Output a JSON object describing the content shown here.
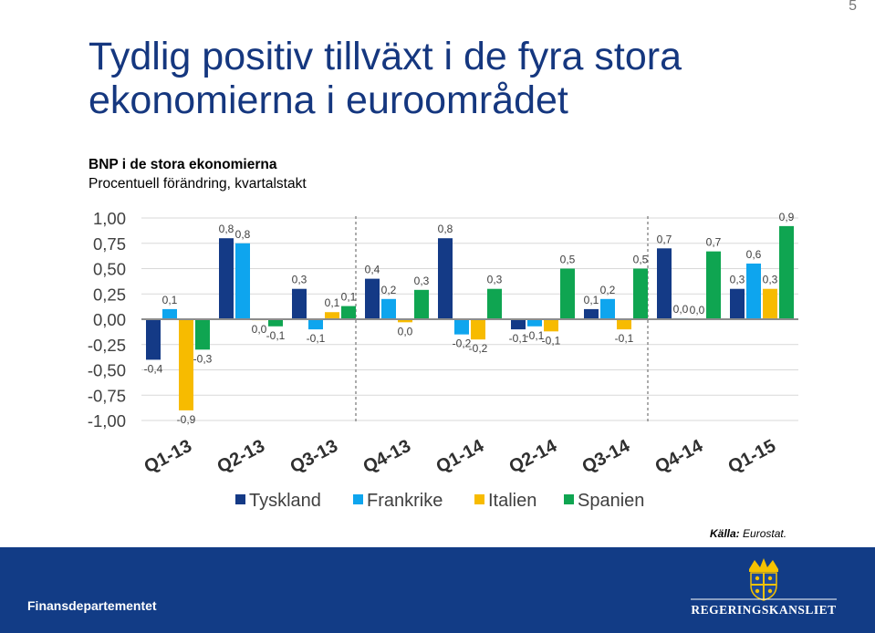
{
  "page": {
    "number": "5",
    "title": "Tydlig positiv tillväxt i de fyra stora ekonomierna i euroområdet",
    "source_label": "Källa:",
    "source_value": "Eurostat.",
    "footer_department": "Finansdepartementet",
    "footer_logo": "REGERINGSKANSLIET"
  },
  "chart_data": {
    "type": "bar",
    "title": "BNP i de stora ekonomierna",
    "subtitle": "Procentuell förändring, kvartalstakt",
    "categories": [
      "Q1-13",
      "Q2-13",
      "Q3-13",
      "Q4-13",
      "Q1-14",
      "Q2-14",
      "Q3-14",
      "Q4-14",
      "Q1-15"
    ],
    "ylim": [
      -1.0,
      1.0
    ],
    "yticks": [
      1.0,
      0.75,
      0.5,
      0.25,
      0.0,
      -0.25,
      -0.5,
      -0.75,
      -1.0
    ],
    "ytick_labels": [
      "1,00",
      "0,75",
      "0,50",
      "0,25",
      "0,00",
      "-0,25",
      "-0,50",
      "-0,75",
      "-1,00"
    ],
    "grid": true,
    "legend_position": "bottom",
    "series": [
      {
        "name": "Tyskland",
        "color": "#143a86",
        "values": [
          -0.4,
          0.8,
          0.3,
          0.4,
          0.8,
          -0.1,
          0.1,
          0.7,
          0.3
        ],
        "labels": [
          "-0,4",
          "0,8",
          "0,3",
          "0,4",
          "0,8",
          "-0,1",
          "0,1",
          "0,7",
          "0,3"
        ]
      },
      {
        "name": "Frankrike",
        "color": "#0ea5ee",
        "values": [
          0.1,
          0.75,
          -0.1,
          0.2,
          -0.15,
          -0.07,
          0.2,
          0.01,
          0.55
        ],
        "labels": [
          "0,1",
          "0,8",
          "-0,1",
          "0,2",
          "-0,2",
          "-0,1",
          "0,2",
          "0,0",
          "0,6"
        ]
      },
      {
        "name": "Italien",
        "color": "#f7bb00",
        "values": [
          -0.9,
          -0.01,
          0.07,
          -0.03,
          -0.2,
          -0.12,
          -0.1,
          0.0,
          0.3
        ],
        "labels": [
          "-0,9",
          "0,0",
          "0,1",
          "0,0",
          "-0,2",
          "-0,1",
          "-0,1",
          "0,0",
          "0,3"
        ]
      },
      {
        "name": "Spanien",
        "color": "#0fa551",
        "values": [
          -0.3,
          -0.07,
          0.13,
          0.29,
          0.3,
          0.5,
          0.5,
          0.67,
          0.92
        ],
        "labels": [
          "-0,3",
          "-0,1",
          "0,1",
          "0,3",
          "0,3",
          "0,5",
          "0,5",
          "0,7",
          "0,9"
        ]
      }
    ]
  }
}
